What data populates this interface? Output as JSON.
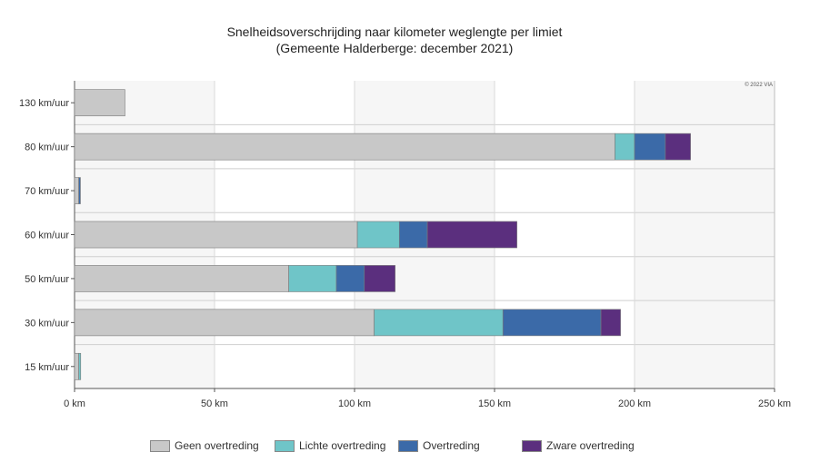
{
  "chart_data": {
    "type": "bar",
    "orientation": "horizontal",
    "stacked": true,
    "title": "Snelheidsoverschrijding naar kilometer weglengte per limiet",
    "subtitle": "(Gemeente Halderberge: december 2021)",
    "watermark": "© 2022 VIA",
    "categories": [
      "130 km/uur",
      "80 km/uur",
      "70 km/uur",
      "60 km/uur",
      "50 km/uur",
      "30 km/uur",
      "15 km/uur"
    ],
    "series": [
      {
        "name": "Geen overtreding",
        "color": "#c8c8c8",
        "values": [
          18,
          193,
          1.5,
          101,
          76.5,
          107,
          1.5
        ]
      },
      {
        "name": "Lichte overtreding",
        "color": "#6fc5c8",
        "values": [
          0,
          7,
          0,
          15,
          17,
          46,
          0.7
        ]
      },
      {
        "name": "Overtreding",
        "color": "#3b6aa8",
        "values": [
          0,
          11,
          0.6,
          10,
          10,
          35,
          0
        ]
      },
      {
        "name": "Zware overtreding",
        "color": "#5b2f7e",
        "values": [
          0,
          9,
          0,
          32,
          11,
          7,
          0
        ]
      }
    ],
    "xlim": [
      0,
      250
    ],
    "xticks": [
      0,
      50,
      100,
      150,
      200,
      250
    ],
    "xtick_labels": [
      "0 km",
      "50 km",
      "100 km",
      "150 km",
      "200 km",
      "250 km"
    ],
    "grid": true,
    "legend_position": "bottom"
  }
}
